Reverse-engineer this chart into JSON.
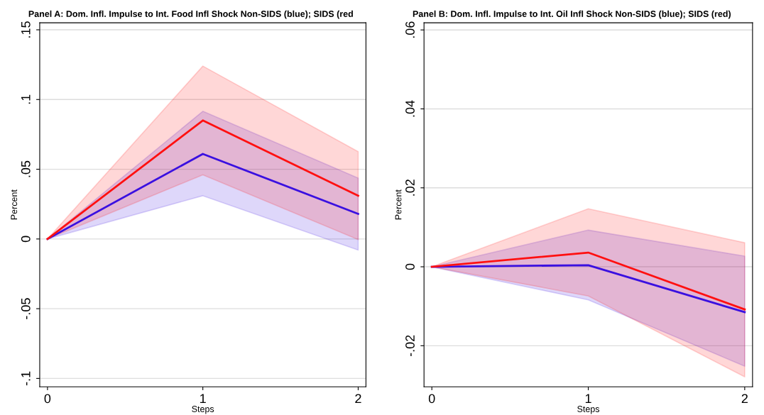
{
  "chart_data": [
    {
      "type": "line",
      "title": "Panel A: Dom. Infl. Impulse to Int. Food Infl Shock Non-SIDS (blue); SIDS (red",
      "xlabel": "Steps",
      "ylabel": "Percent",
      "x": [
        0,
        1,
        2
      ],
      "xlim": [
        -0.05,
        2.05
      ],
      "xticks": [
        0,
        1,
        2
      ],
      "ylim": [
        -0.106,
        0.155
      ],
      "yticks": [
        {
          "value": -0.1,
          "label": "-.1"
        },
        {
          "value": -0.05,
          "label": "-.05"
        },
        0,
        {
          "value": 0.05,
          "label": ".05"
        },
        {
          "value": 0.1,
          "label": ".1"
        },
        {
          "value": 0.15,
          "label": ".15"
        }
      ],
      "grid": "y",
      "legend": false,
      "series": [
        {
          "color": "#3a10e0",
          "values": [
            0,
            0.061,
            0.018
          ],
          "lower": [
            0,
            0.031,
            -0.008
          ],
          "upper": [
            0,
            0.0916,
            0.0437
          ]
        },
        {
          "color": "#ff1010",
          "values": [
            0,
            0.085,
            0.031
          ],
          "lower": [
            0,
            0.046,
            -0.0005
          ],
          "upper": [
            0,
            0.124,
            0.0626
          ]
        }
      ]
    },
    {
      "type": "line",
      "title": "Panel B: Dom. Infl. Impulse to Int. Oil Infl Shock Non-SIDS (blue); SIDS (red)",
      "xlabel": "Steps",
      "ylabel": "Percent",
      "x": [
        0,
        1,
        2
      ],
      "xlim": [
        -0.05,
        2.05
      ],
      "xticks": [
        0,
        1,
        2
      ],
      "ylim": [
        -0.0304,
        0.0618
      ],
      "yticks": [
        {
          "value": -0.02,
          "label": "-.02"
        },
        0,
        {
          "value": 0.02,
          "label": ".02"
        },
        {
          "value": 0.04,
          "label": ".04"
        },
        {
          "value": 0.06,
          "label": ".06"
        }
      ],
      "grid": "y",
      "legend": false,
      "series": [
        {
          "color": "#3a10e0",
          "values": [
            0,
            0.0004,
            -0.0115
          ],
          "lower": [
            0,
            -0.0084,
            -0.0252
          ],
          "upper": [
            0,
            0.0093,
            0.0027
          ]
        },
        {
          "color": "#ff1010",
          "values": [
            0,
            0.0036,
            -0.0108
          ],
          "lower": [
            0,
            -0.0074,
            -0.0279
          ],
          "upper": [
            0,
            0.0147,
            0.0061
          ]
        }
      ]
    }
  ]
}
